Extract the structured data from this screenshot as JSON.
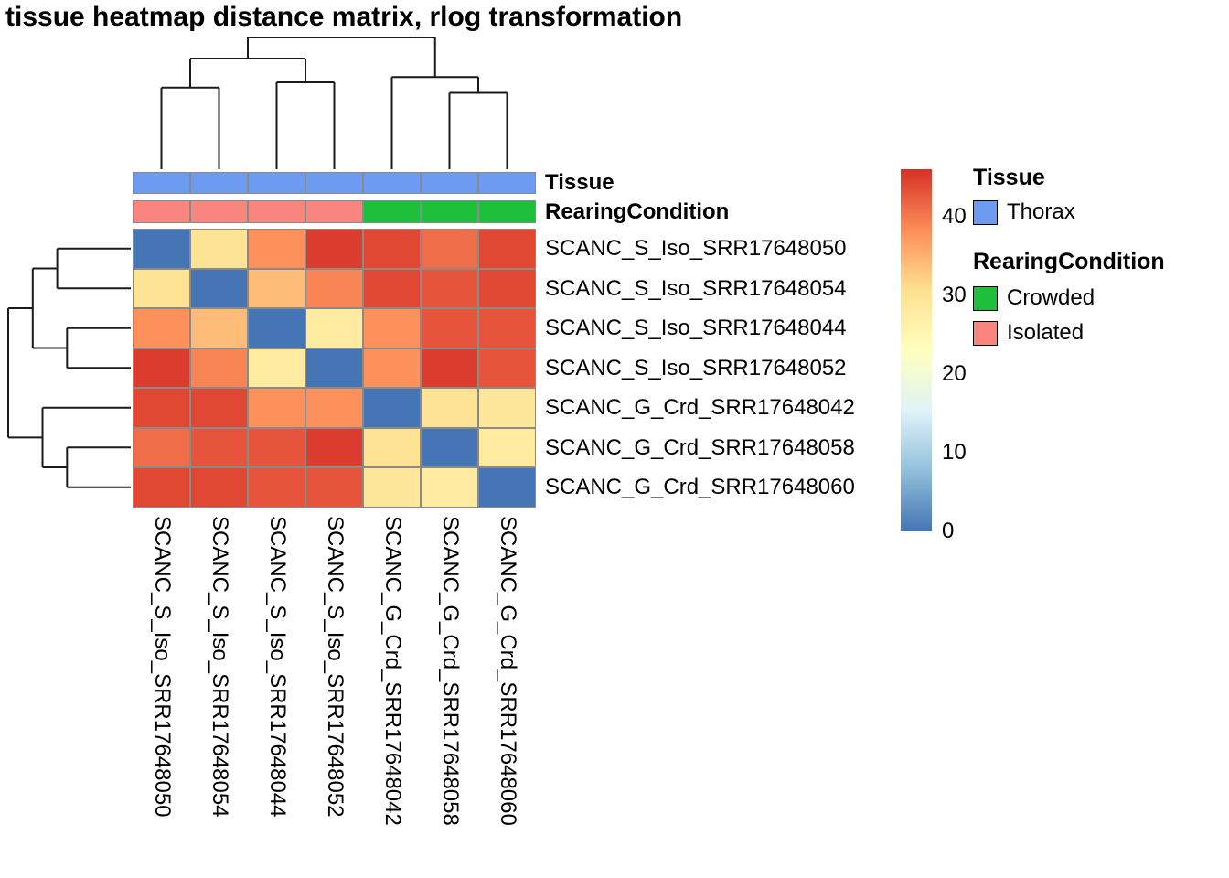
{
  "title": "tissue heatmap distance matrix, rlog transformation",
  "chart_data": {
    "type": "heatmap",
    "title": "tissue heatmap distance matrix, rlog transformation",
    "samples": [
      "SCANC_S_Iso_SRR17648050",
      "SCANC_S_Iso_SRR17648054",
      "SCANC_S_Iso_SRR17648044",
      "SCANC_S_Iso_SRR17648052",
      "SCANC_G_Crd_SRR17648042",
      "SCANC_G_Crd_SRR17648058",
      "SCANC_G_Crd_SRR17648060"
    ],
    "matrix": [
      [
        0,
        30,
        38,
        45,
        44,
        41,
        44
      ],
      [
        30,
        0,
        34,
        39,
        44,
        43,
        44
      ],
      [
        38,
        34,
        0,
        28,
        38,
        43,
        43
      ],
      [
        45,
        39,
        28,
        0,
        38,
        45,
        43
      ],
      [
        44,
        44,
        38,
        38,
        0,
        30,
        29
      ],
      [
        41,
        43,
        43,
        45,
        30,
        0,
        28
      ],
      [
        44,
        44,
        43,
        43,
        29,
        28,
        0
      ]
    ],
    "scale": {
      "min": 0,
      "max": 46,
      "ticks": [
        0,
        10,
        20,
        30,
        40
      ],
      "palette": [
        "#4575B4",
        "#91BFDB",
        "#E0F3F8",
        "#FFFFBF",
        "#FEE090",
        "#FC8D59",
        "#D73027"
      ]
    },
    "annotations": {
      "tissue": {
        "label": "Tissue",
        "values": [
          "Thorax",
          "Thorax",
          "Thorax",
          "Thorax",
          "Thorax",
          "Thorax",
          "Thorax"
        ],
        "colors": {
          "Thorax": "#6D9BF1"
        }
      },
      "rearing": {
        "label": "RearingCondition",
        "values": [
          "Isolated",
          "Isolated",
          "Isolated",
          "Isolated",
          "Crowded",
          "Crowded",
          "Crowded"
        ],
        "colors": {
          "Crowded": "#1DBF3B",
          "Isolated": "#F8867E"
        }
      }
    },
    "legend": {
      "tissue_title": "Tissue",
      "tissue_items": [
        {
          "label": "Thorax",
          "color": "#6D9BF1"
        }
      ],
      "rearing_title": "RearingCondition",
      "rearing_items": [
        {
          "label": "Crowded",
          "color": "#1DBF3B"
        },
        {
          "label": "Isolated",
          "color": "#F8867E"
        }
      ]
    },
    "col_dendrogram": {
      "merges": [
        {
          "a": "L0",
          "b": "L1",
          "h": 0.62
        },
        {
          "a": "L2",
          "b": "L3",
          "h": 0.66
        },
        {
          "a": "M0",
          "b": "M1",
          "h": 0.84
        },
        {
          "a": "L5",
          "b": "L6",
          "h": 0.58
        },
        {
          "a": "L4",
          "b": "M3",
          "h": 0.7
        },
        {
          "a": "M2",
          "b": "M4",
          "h": 1.0
        }
      ]
    },
    "row_dendrogram": {
      "merges": [
        {
          "a": "L0",
          "b": "L1",
          "h": 0.6
        },
        {
          "a": "L2",
          "b": "L3",
          "h": 0.52
        },
        {
          "a": "M0",
          "b": "M1",
          "h": 0.8
        },
        {
          "a": "L5",
          "b": "L6",
          "h": 0.52
        },
        {
          "a": "L4",
          "b": "M3",
          "h": 0.72
        },
        {
          "a": "M2",
          "b": "M4",
          "h": 1.0
        }
      ]
    }
  }
}
